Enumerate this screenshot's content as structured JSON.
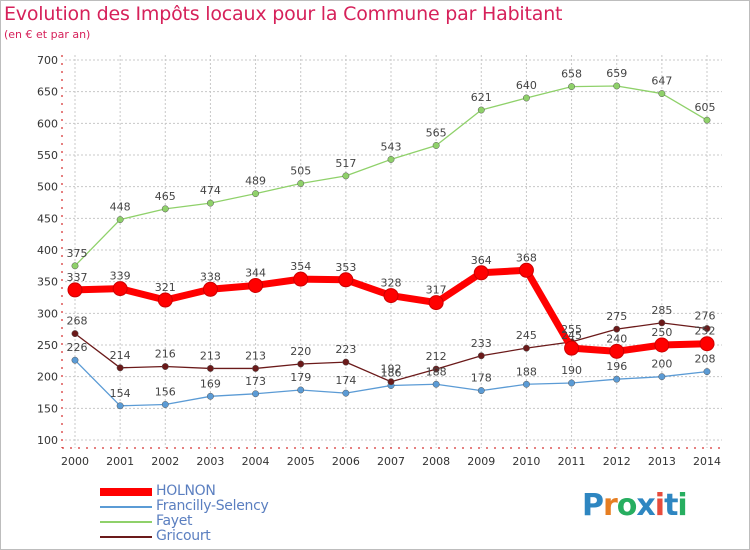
{
  "header": {
    "title": "Evolution des Impôts locaux pour la Commune par Habitant",
    "subtitle": "(en € et par an)"
  },
  "chart_data": {
    "type": "line",
    "x": [
      "2000",
      "2001",
      "2002",
      "2003",
      "2004",
      "2005",
      "2006",
      "2007",
      "2008",
      "2009",
      "2010",
      "2011",
      "2012",
      "2013",
      "2014"
    ],
    "ylim": [
      100,
      700
    ],
    "yticks": [
      100,
      150,
      200,
      250,
      300,
      350,
      400,
      450,
      500,
      550,
      600,
      650,
      700
    ],
    "grid": true,
    "legend_position": "bottom-left",
    "series": [
      {
        "name": "HOLNON",
        "color": "#ff0000",
        "values": [
          337,
          339,
          321,
          338,
          344,
          354,
          353,
          328,
          317,
          364,
          368,
          245,
          240,
          250,
          252
        ],
        "labels": [
          "337",
          "339",
          "321",
          "338",
          "344",
          "354",
          "353",
          "328",
          "317",
          "364",
          "368",
          "245",
          "240",
          "250",
          "252"
        ]
      },
      {
        "name": "Francilly-Selency",
        "color": "#5b9bd5",
        "values": [
          226,
          154,
          156,
          169,
          173,
          179,
          174,
          186,
          188,
          178,
          188,
          190,
          196,
          200,
          208
        ],
        "labels": [
          "226",
          "154",
          "156",
          "169",
          "173",
          "179",
          "174",
          "186",
          "188",
          "178",
          "188",
          "190",
          "196",
          "200",
          "208"
        ]
      },
      {
        "name": "Fayet",
        "color": "#8fd16a",
        "values": [
          375,
          448,
          465,
          474,
          489,
          505,
          517,
          543,
          565,
          621,
          640,
          658,
          659,
          647,
          605
        ],
        "labels": [
          "375",
          "448",
          "465",
          "474",
          "489",
          "505",
          "517",
          "543",
          "565",
          "621",
          "640",
          "658",
          "659",
          "647",
          "605"
        ]
      },
      {
        "name": "Gricourt",
        "color": "#6b1a1a",
        "values": [
          268,
          214,
          216,
          213,
          213,
          220,
          223,
          192,
          212,
          233,
          245,
          255,
          275,
          285,
          276
        ],
        "labels": [
          "268",
          "214",
          "216",
          "213",
          "213",
          "220",
          "223",
          "192",
          "212",
          "233",
          "245",
          "255",
          "275",
          "285",
          "276"
        ]
      }
    ]
  },
  "legend": {
    "items": [
      {
        "label": "HOLNON",
        "color": "#ff0000"
      },
      {
        "label": "Francilly-Selency",
        "color": "#5b9bd5"
      },
      {
        "label": "Fayet",
        "color": "#8fd16a"
      },
      {
        "label": "Gricourt",
        "color": "#6b1a1a"
      }
    ]
  },
  "logo": {
    "text": "Proxiti",
    "letters": [
      {
        "ch": "P",
        "color": "#2e86c1"
      },
      {
        "ch": "r",
        "color": "#e67e22"
      },
      {
        "ch": "o",
        "color": "#27ae60"
      },
      {
        "ch": "x",
        "color": "#2e86c1"
      },
      {
        "ch": "i",
        "color": "#e74c3c"
      },
      {
        "ch": "t",
        "color": "#2e86c1"
      },
      {
        "ch": "i",
        "color": "#27ae60"
      }
    ]
  }
}
